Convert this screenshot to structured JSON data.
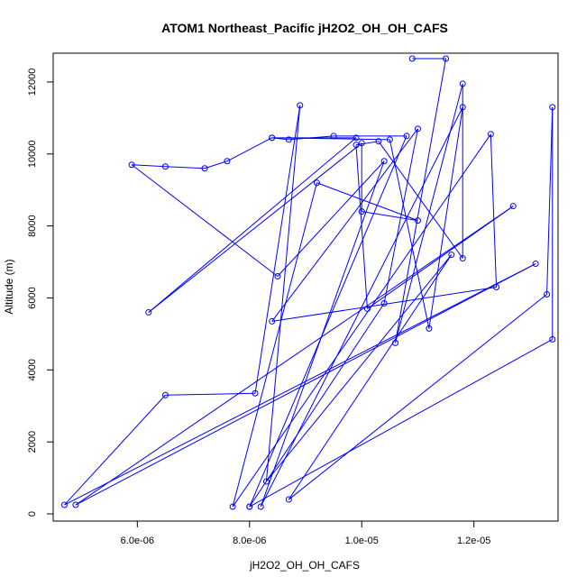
{
  "chart_data": {
    "type": "scatter",
    "title": "ATOM1 Northeast_Pacific jH2O2_OH_OH_CAFS",
    "xlabel": "jH2O2_OH_OH_CAFS",
    "ylabel": "Altitude (m)",
    "xlim": [
      4.5e-06,
      1.35e-05
    ],
    "ylim": [
      -200,
      12800
    ],
    "x_ticks": [
      6e-06,
      8e-06,
      1e-05,
      1.2e-05
    ],
    "x_tick_labels": [
      "6.0e-06",
      "8.0e-06",
      "1.0e-05",
      "1.2e-05"
    ],
    "y_ticks": [
      0,
      2000,
      4000,
      6000,
      8000,
      10000,
      12000
    ],
    "y_tick_labels": [
      "0",
      "2000",
      "4000",
      "6000",
      "8000",
      "10000",
      "12000"
    ],
    "series": [
      {
        "color": "#0000ff",
        "marker": "open-circle",
        "connected": true,
        "points": [
          [
            1.09e-05,
            12650
          ],
          [
            1.15e-05,
            12650
          ],
          [
            1.06e-05,
            4750
          ],
          [
            1.18e-05,
            11950
          ],
          [
            1.18e-05,
            7100
          ],
          [
            1.03e-05,
            10350
          ],
          [
            9.9e-06,
            10250
          ],
          [
            1.01e-05,
            5700
          ],
          [
            1.27e-05,
            8550
          ],
          [
            4.9e-06,
            250
          ],
          [
            1.31e-05,
            6950
          ],
          [
            4.7e-06,
            250
          ],
          [
            6.5e-06,
            3300
          ],
          [
            8.1e-06,
            3350
          ],
          [
            8.9e-06,
            11350
          ],
          [
            8.3e-06,
            900
          ],
          [
            1.16e-05,
            7200
          ],
          [
            8.7e-06,
            400
          ],
          [
            1.33e-05,
            6100
          ],
          [
            1.34e-05,
            11300
          ],
          [
            1.34e-05,
            4850
          ],
          [
            8e-06,
            200
          ],
          [
            1.08e-05,
            10500
          ],
          [
            9.5e-06,
            10500
          ],
          [
            8.7e-06,
            10400
          ],
          [
            8.4e-06,
            10450
          ],
          [
            1.05e-05,
            10400
          ],
          [
            1.12e-05,
            5150
          ],
          [
            1.18e-05,
            11300
          ],
          [
            8.2e-06,
            200
          ],
          [
            1.04e-05,
            9800
          ],
          [
            8.5e-06,
            6600
          ],
          [
            5.9e-06,
            9700
          ],
          [
            6.5e-06,
            9650
          ],
          [
            7.2e-06,
            9600
          ],
          [
            7.6e-06,
            9800
          ],
          [
            8.4e-06,
            10450
          ],
          [
            9.9e-06,
            10450
          ],
          [
            6.2e-06,
            5600
          ],
          [
            1e-05,
            10300
          ],
          [
            1e-05,
            8400
          ],
          [
            1.1e-05,
            8150
          ],
          [
            9.2e-06,
            9200
          ],
          [
            7.7e-06,
            200
          ],
          [
            1.23e-05,
            10550
          ],
          [
            1.24e-05,
            6300
          ],
          [
            8.4e-06,
            5350
          ],
          [
            1.1e-05,
            10700
          ],
          [
            1.04e-05,
            5850
          ],
          [
            8e-06,
            200
          ]
        ]
      }
    ]
  }
}
